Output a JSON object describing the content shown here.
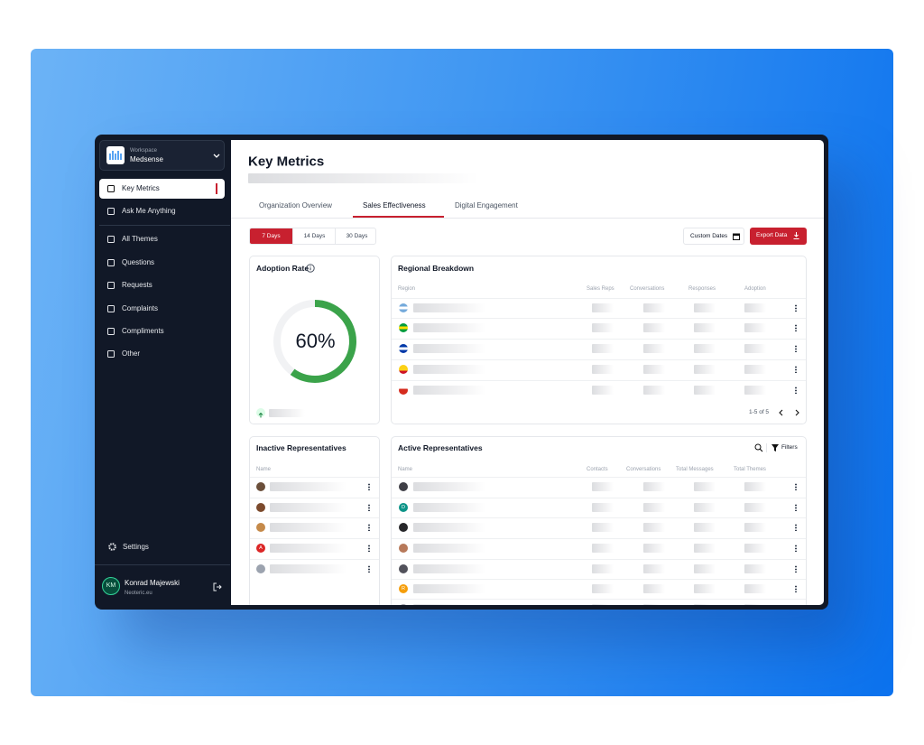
{
  "sidebar": {
    "workspace_label": "Workspace",
    "workspace_name": "Medsense",
    "nav": [
      "Key Metrics",
      "Ask Me Anything",
      "All Themes",
      "Questions",
      "Requests",
      "Complaints",
      "Compliments",
      "Other"
    ],
    "settings": "Settings",
    "user": {
      "initials": "KM",
      "name": "Konrad Majewski",
      "org": "Neoteric.eu"
    }
  },
  "header": {
    "title": "Key Metrics"
  },
  "tabs": [
    "Organization Overview",
    "Sales Effectiveness",
    "Digital Engagement"
  ],
  "range_buttons": [
    "7 Days",
    "14 Days",
    "30 Days"
  ],
  "actions": {
    "custom_dates": "Custom Dates",
    "export": "Export Data"
  },
  "adoption": {
    "title": "Adoption Rate",
    "value": 60,
    "value_label": "60%"
  },
  "regional": {
    "title": "Regional Breakdown",
    "columns": [
      "Region",
      "Sales Reps",
      "Conversations",
      "Responses",
      "Adoption"
    ],
    "pagination": "1-5 of 5"
  },
  "inactive": {
    "title": "Inactive Representatives",
    "columns": [
      "Name"
    ],
    "letter_avatar": "A"
  },
  "active": {
    "title": "Active Representatives",
    "filters": "Filters",
    "columns": [
      "Name",
      "Contacts",
      "Conversations",
      "Total Messages",
      "Total Themes"
    ],
    "letter_avatars": [
      "D",
      "R"
    ]
  }
}
